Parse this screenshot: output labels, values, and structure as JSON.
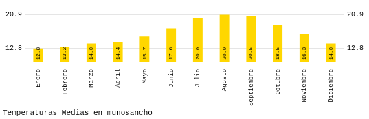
{
  "chart_data": {
    "type": "bar",
    "title": "Temperaturas Medias en munosancho",
    "categories": [
      "Enero",
      "Febrero",
      "Marzo",
      "Abril",
      "Mayo",
      "Junio",
      "Julio",
      "Agosto",
      "Septiembre",
      "Octubre",
      "Noviembre",
      "Diciembre"
    ],
    "values": [
      12.8,
      13.2,
      14.0,
      14.4,
      15.7,
      17.6,
      20.0,
      20.9,
      20.5,
      18.5,
      16.3,
      14.0
    ],
    "value_labels": [
      "12.8",
      "13.2",
      "14.0",
      "14.4",
      "15.7",
      "17.6",
      "20.0",
      "20.9",
      "20.5",
      "18.5",
      "16.3",
      "14.0"
    ],
    "color": "#FFD700",
    "ylim": [
      9.5,
      22.8
    ],
    "yticks": [
      12.8,
      20.9
    ],
    "y2lim": [
      9.5,
      22.8
    ],
    "y2ticks": [
      12.8,
      20.9
    ],
    "grid": true,
    "data_labels": true
  }
}
